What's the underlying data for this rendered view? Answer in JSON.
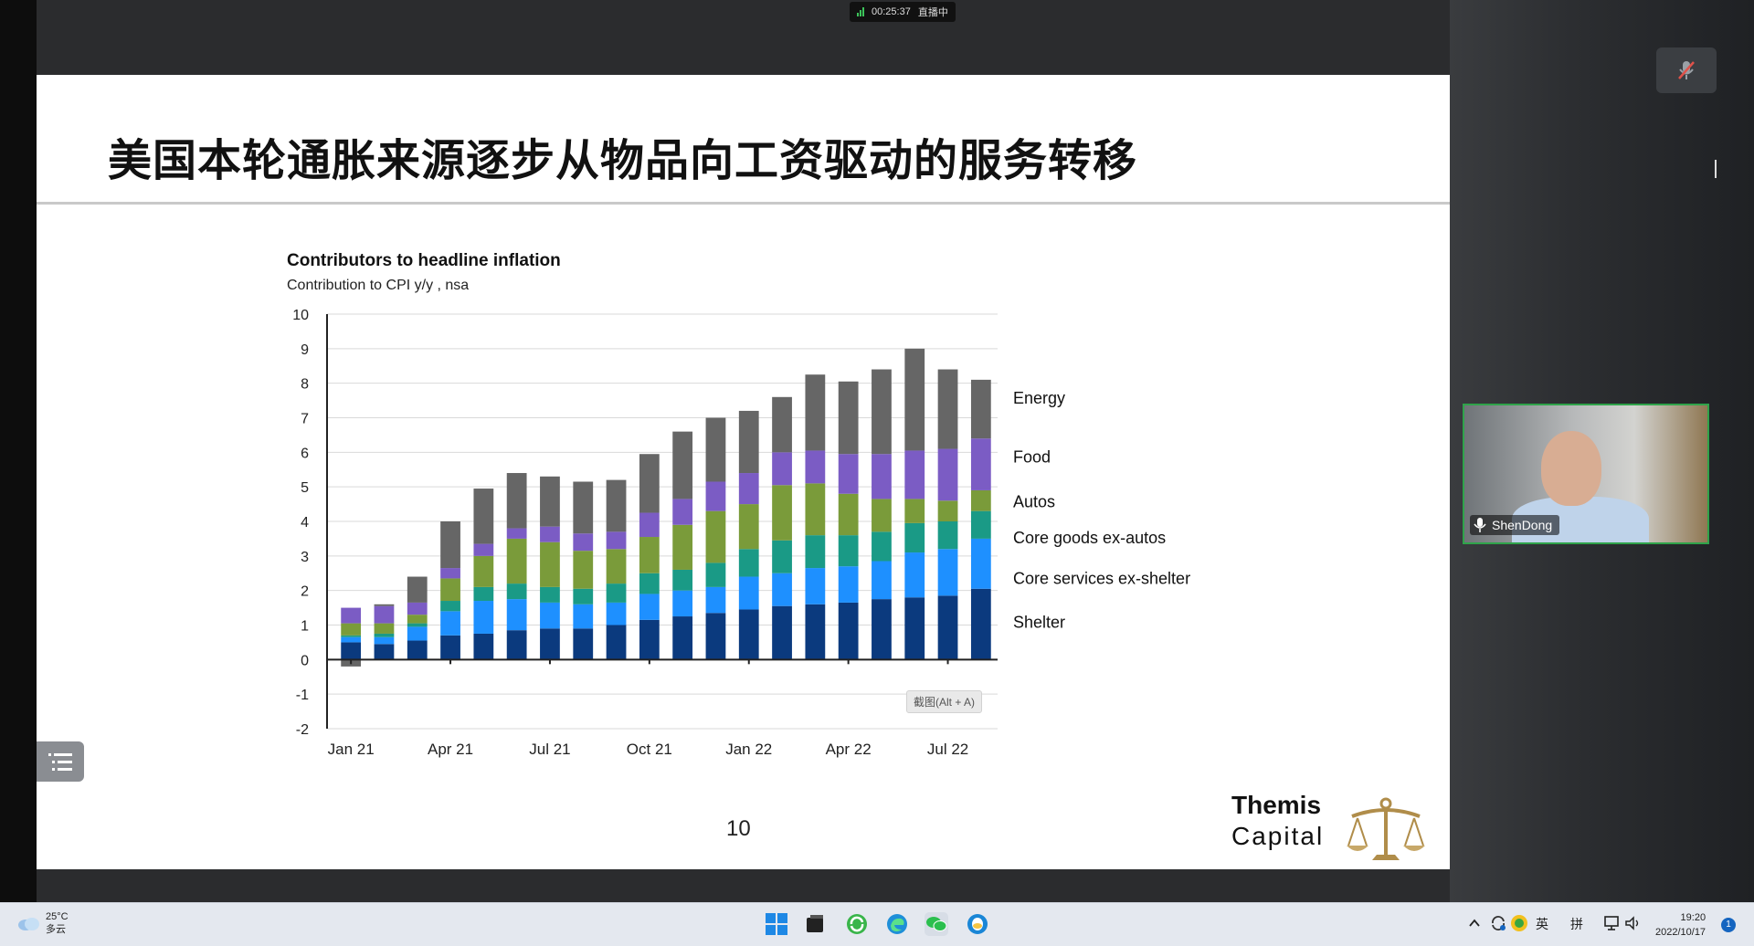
{
  "meeting": {
    "timer": "00:25:37",
    "status": "直播中",
    "participant_name": "ShenDong"
  },
  "slide": {
    "title": "美国本轮通胀来源逐步从物品向工资驱动的服务转移",
    "page_number": "10",
    "logo_line1": "Themis",
    "logo_line2": "Capital",
    "tooltip": "截图(Alt + A)"
  },
  "chart_data": {
    "type": "bar",
    "stacked": true,
    "title": "Contributors to headline inflation",
    "subtitle": "Contribution to CPI y/y , nsa",
    "ylim": [
      -2,
      10
    ],
    "yticks": [
      "10",
      "9",
      "8",
      "7",
      "6",
      "5",
      "4",
      "3",
      "2",
      "1",
      "0",
      "-1",
      "-2"
    ],
    "xtick_labels": [
      "Jan 21",
      "Apr 21",
      "Jul 21",
      "Oct 21",
      "Jan 22",
      "Apr 22",
      "Jul 22"
    ],
    "categories": [
      "Jan 21",
      "Feb 21",
      "Mar 21",
      "Apr 21",
      "May 21",
      "Jun 21",
      "Jul 21",
      "Aug 21",
      "Sep 21",
      "Oct 21",
      "Nov 21",
      "Dec 21",
      "Jan 22",
      "Feb 22",
      "Mar 22",
      "Apr 22",
      "May 22",
      "Jun 22",
      "Jul 22",
      "Aug 22"
    ],
    "series": [
      {
        "name": "Shelter",
        "color": "#0b3a7e",
        "values": [
          0.5,
          0.45,
          0.55,
          0.7,
          0.75,
          0.85,
          0.9,
          0.9,
          1.0,
          1.15,
          1.25,
          1.35,
          1.45,
          1.55,
          1.6,
          1.65,
          1.75,
          1.8,
          1.85,
          2.05
        ]
      },
      {
        "name": "Core services ex-shelter",
        "color": "#1e90ff",
        "values": [
          0.15,
          0.2,
          0.4,
          0.7,
          0.95,
          0.9,
          0.75,
          0.7,
          0.65,
          0.75,
          0.75,
          0.75,
          0.95,
          0.95,
          1.05,
          1.05,
          1.1,
          1.3,
          1.35,
          1.45
        ]
      },
      {
        "name": "Core goods ex-autos",
        "color": "#1a9a86",
        "values": [
          0.05,
          0.1,
          0.1,
          0.3,
          0.4,
          0.45,
          0.45,
          0.45,
          0.55,
          0.6,
          0.6,
          0.7,
          0.8,
          0.95,
          0.95,
          0.9,
          0.85,
          0.85,
          0.8,
          0.8
        ]
      },
      {
        "name": "Autos",
        "color": "#7a9b3a",
        "values": [
          0.35,
          0.3,
          0.25,
          0.65,
          0.9,
          1.3,
          1.3,
          1.1,
          1.0,
          1.05,
          1.3,
          1.5,
          1.3,
          1.6,
          1.5,
          1.2,
          0.95,
          0.7,
          0.6,
          0.6
        ]
      },
      {
        "name": "Food",
        "color": "#7b5cc4",
        "values": [
          0.45,
          0.5,
          0.35,
          0.3,
          0.35,
          0.3,
          0.45,
          0.5,
          0.5,
          0.7,
          0.75,
          0.85,
          0.9,
          0.95,
          0.95,
          1.15,
          1.3,
          1.4,
          1.5,
          1.5
        ]
      },
      {
        "name": "Energy",
        "color": "#666666",
        "values": [
          -0.2,
          0.05,
          0.75,
          1.35,
          1.6,
          1.6,
          1.45,
          1.5,
          1.5,
          1.7,
          1.95,
          1.85,
          1.8,
          1.6,
          2.2,
          2.1,
          2.45,
          2.95,
          2.3,
          1.7
        ]
      }
    ]
  },
  "taskbar": {
    "temperature": "25°C",
    "weather_desc": "多云",
    "ime_lang": "英",
    "ime_mode": "拼",
    "time": "19:20",
    "date": "2022/10/17",
    "notification_count": "1"
  }
}
